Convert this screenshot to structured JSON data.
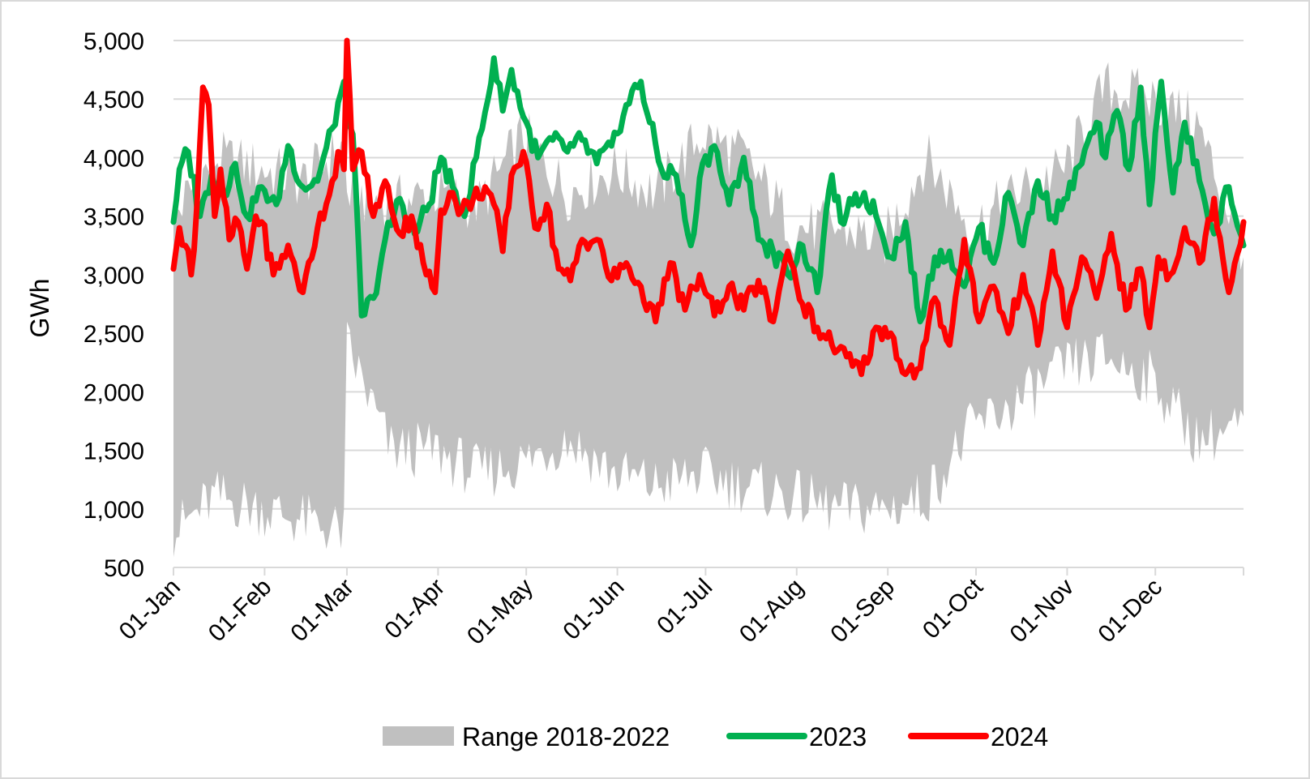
{
  "chart_data": {
    "type": "line",
    "title": "",
    "xlabel": "",
    "ylabel": "GWh",
    "ylim": [
      500,
      5000
    ],
    "y_ticks": [
      "500",
      "1,000",
      "1,500",
      "2,000",
      "2,500",
      "3,000",
      "3,500",
      "4,000",
      "4,500",
      "5,000"
    ],
    "x_ticks": [
      "01-Jan",
      "01-Feb",
      "01-Mar",
      "01-Apr",
      "01-May",
      "01-Jun",
      "01-Jul",
      "01-Aug",
      "01-Sep",
      "01-Oct",
      "01-Nov",
      "01-Dec"
    ],
    "grid": "horizontal",
    "legend_position": "bottom",
    "colors": {
      "range": "#c0c0c0",
      "s2023": "#00b050",
      "s2024": "#ff0000"
    },
    "series": [
      {
        "name": "Range 2018-2022",
        "kind": "band",
        "x_day": [
          1,
          15,
          31,
          45,
          59,
          60,
          75,
          90,
          105,
          120,
          135,
          151,
          165,
          181,
          195,
          212,
          226,
          243,
          257,
          273,
          288,
          304,
          318,
          334,
          349,
          365
        ],
        "low": [
          800,
          1100,
          1000,
          900,
          800,
          2400,
          1500,
          1500,
          1300,
          1400,
          1600,
          1300,
          1200,
          1300,
          1200,
          1100,
          1000,
          1000,
          1100,
          1700,
          1900,
          2200,
          2300,
          2100,
          1600,
          1700
        ],
        "high": [
          3500,
          4000,
          3900,
          3800,
          4100,
          3700,
          3600,
          3700,
          3600,
          4200,
          3700,
          3900,
          3700,
          4200,
          4000,
          3400,
          3400,
          3300,
          4000,
          3400,
          3700,
          3900,
          4600,
          4500,
          4300,
          3200
        ]
      },
      {
        "name": "2023",
        "kind": "line",
        "x_day": [
          1,
          3,
          6,
          10,
          14,
          18,
          22,
          26,
          31,
          36,
          40,
          45,
          50,
          55,
          59,
          62,
          65,
          69,
          73,
          78,
          83,
          88,
          92,
          96,
          100,
          104,
          108,
          110,
          113,
          116,
          120,
          125,
          130,
          135,
          140,
          145,
          150,
          155,
          160,
          163,
          167,
          172,
          177,
          181,
          185,
          190,
          195,
          200,
          205,
          210,
          215,
          220,
          225,
          228,
          232,
          236,
          240,
          245,
          250,
          255,
          260,
          265,
          270,
          275,
          280,
          285,
          290,
          295,
          300,
          305,
          310,
          315,
          318,
          322,
          326,
          330,
          333,
          337,
          341,
          345,
          350,
          355,
          360,
          365
        ],
        "values": [
          3450,
          3900,
          4050,
          3500,
          3850,
          3700,
          3950,
          3500,
          3750,
          3600,
          4100,
          3750,
          3800,
          4250,
          4650,
          4200,
          2650,
          2800,
          3300,
          3650,
          3350,
          3600,
          4000,
          3750,
          3500,
          4000,
          4500,
          4850,
          4400,
          4750,
          4350,
          4000,
          4150,
          4050,
          4150,
          3950,
          4100,
          4450,
          4650,
          4300,
          3900,
          3850,
          3250,
          3950,
          4100,
          3600,
          4000,
          3300,
          3200,
          3000,
          3250,
          2850,
          3850,
          3450,
          3600,
          3700,
          3500,
          3150,
          3450,
          2600,
          3150,
          3200,
          2900,
          3400,
          3100,
          3700,
          3250,
          3800,
          3500,
          3650,
          3950,
          4300,
          4000,
          4400,
          3900,
          4600,
          3600,
          4650,
          3700,
          4300,
          3800,
          3350,
          3750,
          3250
        ]
      },
      {
        "name": "2024",
        "kind": "line",
        "x_day": [
          1,
          3,
          5,
          7,
          9,
          11,
          13,
          15,
          17,
          20,
          23,
          26,
          29,
          31,
          35,
          40,
          45,
          50,
          55,
          57,
          59,
          60,
          62,
          65,
          69,
          73,
          78,
          82,
          86,
          90,
          92,
          95,
          99,
          103,
          107,
          110,
          113,
          116,
          120,
          124,
          128,
          132,
          136,
          140,
          145,
          150,
          155,
          160,
          165,
          170,
          175,
          180,
          185,
          190,
          195,
          200,
          205,
          210,
          215,
          220,
          225,
          230,
          235,
          240,
          245,
          250,
          255,
          260,
          265,
          270,
          275,
          280,
          285,
          290,
          295,
          300,
          305,
          310,
          315,
          320,
          325,
          330,
          333,
          336,
          340,
          345,
          350,
          355,
          360,
          365
        ],
        "values": [
          3050,
          3400,
          3250,
          3000,
          3600,
          4600,
          4450,
          3500,
          3900,
          3300,
          3450,
          3050,
          3500,
          3450,
          3000,
          3250,
          2850,
          3400,
          3800,
          4050,
          3900,
          5000,
          3900,
          4050,
          3500,
          3800,
          3350,
          3500,
          3100,
          2850,
          3550,
          3700,
          3550,
          3650,
          3750,
          3600,
          3200,
          3850,
          4050,
          3400,
          3600,
          3050,
          2950,
          3300,
          3300,
          2950,
          3100,
          2900,
          2600,
          3100,
          2700,
          3000,
          2650,
          2900,
          2700,
          2950,
          2600,
          3200,
          2750,
          2550,
          2400,
          2300,
          2150,
          2550,
          2500,
          2150,
          2200,
          2800,
          2400,
          3300,
          2600,
          2900,
          2500,
          3000,
          2400,
          3200,
          2550,
          3150,
          2800,
          3350,
          2700,
          3050,
          2550,
          3150,
          3000,
          3400,
          3100,
          3650,
          2850,
          3450
        ]
      }
    ]
  }
}
